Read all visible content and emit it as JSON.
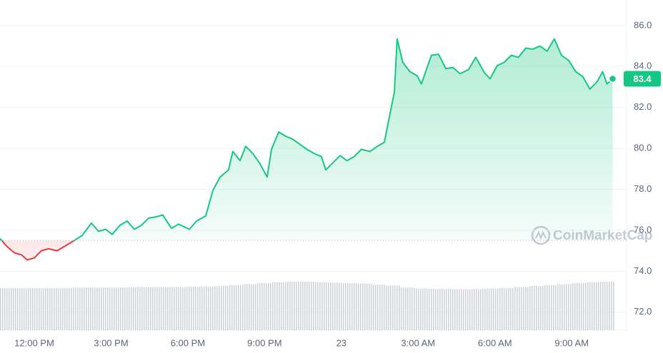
{
  "chart_data": {
    "type": "line",
    "x": [
      -1.34,
      -1.06,
      -0.78,
      -0.5,
      -0.28,
      0,
      0.28,
      0.56,
      0.89,
      1.23,
      1.56,
      1.87,
      2.23,
      2.51,
      2.79,
      3.04,
      3.35,
      3.63,
      3.91,
      4.19,
      4.47,
      4.74,
      5.02,
      5.36,
      5.64,
      6.06,
      6.34,
      6.7,
      6.98,
      7.26,
      7.59,
      7.76,
      8.04,
      8.26,
      8.54,
      8.82,
      9.1,
      9.27,
      9.55,
      9.82,
      10.1,
      10.38,
      10.66,
      10.94,
      11.22,
      11.39,
      11.67,
      11.95,
      12.22,
      12.5,
      12.78,
      13.12,
      13.4,
      13.68,
      13.9,
      14.07,
      14.18,
      14.4,
      14.68,
      14.96,
      15.13,
      15.35,
      15.52,
      15.8,
      16.08,
      16.36,
      16.63,
      16.97,
      17.25,
      17.59,
      17.81,
      18.09,
      18.36,
      18.64,
      18.92,
      19.2,
      19.48,
      19.76,
      20.04,
      20.32,
      20.6,
      20.88,
      21.16,
      21.44,
      21.71,
      21.99,
      22.21,
      22.38,
      22.6
    ],
    "values": [
      75.6,
      75.2,
      74.9,
      74.8,
      74.55,
      74.65,
      75.0,
      75.1,
      75.0,
      75.25,
      75.5,
      75.75,
      76.35,
      75.95,
      76.05,
      75.8,
      76.25,
      76.45,
      76.05,
      76.25,
      76.6,
      76.65,
      76.75,
      76.1,
      76.3,
      76.05,
      76.45,
      76.7,
      77.95,
      78.6,
      78.95,
      79.85,
      79.4,
      80.1,
      79.75,
      79.25,
      78.6,
      79.95,
      80.8,
      80.6,
      80.45,
      80.2,
      79.95,
      79.75,
      79.6,
      78.95,
      79.3,
      79.65,
      79.4,
      79.6,
      79.95,
      79.85,
      80.1,
      80.3,
      81.7,
      82.75,
      85.35,
      84.2,
      83.75,
      83.55,
      83.15,
      83.95,
      84.55,
      84.6,
      83.9,
      83.95,
      83.65,
      83.85,
      84.45,
      83.7,
      83.4,
      84.05,
      84.2,
      84.55,
      84.45,
      84.9,
      84.85,
      85.0,
      84.75,
      85.35,
      84.55,
      84.3,
      83.75,
      83.5,
      82.9,
      83.25,
      83.75,
      83.15,
      83.4
    ],
    "color": "#16c784",
    "below_color": "#ea3943",
    "reference": 75.5,
    "current_price": 83.4,
    "xlim": [
      -1.34,
      22.67
    ],
    "xticks": [
      {
        "value": 0,
        "label": "12:00 PM"
      },
      {
        "value": 3,
        "label": "3:00 PM"
      },
      {
        "value": 6,
        "label": "6:00 PM"
      },
      {
        "value": 9,
        "label": "9:00 PM"
      },
      {
        "value": 12,
        "label": "23"
      },
      {
        "value": 15,
        "label": "3:00 AM"
      },
      {
        "value": 18,
        "label": "6:00 AM"
      },
      {
        "value": 21,
        "label": "9:00 AM"
      }
    ],
    "ylim": [
      71.12,
      87.25
    ],
    "yticks": [
      {
        "value": 72,
        "label": "72.0"
      },
      {
        "value": 74,
        "label": "74.0"
      },
      {
        "value": 76,
        "label": "76.0"
      },
      {
        "value": 78,
        "label": "78.0"
      },
      {
        "value": 80,
        "label": "80.0"
      },
      {
        "value": 82,
        "label": "82.0"
      },
      {
        "value": 84,
        "label": "84.0"
      },
      {
        "value": 86,
        "label": "86.0"
      }
    ],
    "grid": true,
    "volume": {
      "values": [
        87,
        87,
        87,
        87,
        87,
        88,
        88,
        88,
        88,
        89,
        89,
        89,
        89,
        90,
        90,
        91,
        93,
        95,
        97,
        99,
        100,
        100,
        99,
        98,
        97,
        96,
        94,
        92,
        88,
        86,
        85,
        85,
        84,
        85,
        86,
        87,
        89,
        91,
        93,
        95,
        97,
        99,
        100
      ],
      "ylim": [
        0,
        100
      ],
      "color": "#cfd3d9"
    },
    "watermark": "CoinMarketCap"
  }
}
